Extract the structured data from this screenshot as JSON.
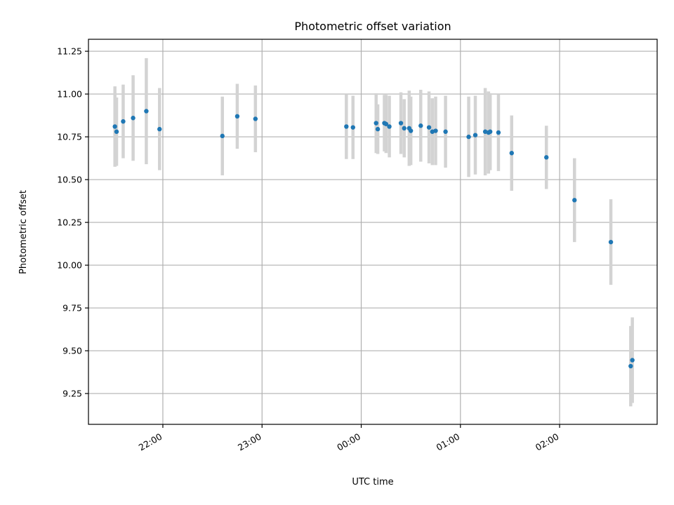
{
  "chart_data": {
    "type": "scatter",
    "title": "Photometric offset variation",
    "xlabel": "UTC time",
    "ylabel": "Photometric offset",
    "x_axis": "time",
    "xlim": [
      "21:15",
      "02:59"
    ],
    "ylim": [
      9.07,
      11.32
    ],
    "grid": true,
    "x_ticks": [
      "22:00",
      "23:00",
      "00:00",
      "01:00",
      "02:00"
    ],
    "y_ticks": [
      "9.25",
      "9.50",
      "9.75",
      "10.00",
      "10.25",
      "10.50",
      "10.75",
      "11.00",
      "11.25"
    ],
    "marker_color": "#1f77b4",
    "errorbar_color": "#d3d3d3",
    "series": [
      {
        "points": [
          {
            "t": "21:31",
            "y": 10.81,
            "err": 0.235
          },
          {
            "t": "21:32",
            "y": 10.78,
            "err": 0.2
          },
          {
            "t": "21:36",
            "y": 10.84,
            "err": 0.215
          },
          {
            "t": "21:42",
            "y": 10.86,
            "err": 0.25
          },
          {
            "t": "21:50",
            "y": 10.9,
            "err": 0.31
          },
          {
            "t": "21:58",
            "y": 10.795,
            "err": 0.24
          },
          {
            "t": "22:36",
            "y": 10.755,
            "err": 0.23
          },
          {
            "t": "22:45",
            "y": 10.87,
            "err": 0.19
          },
          {
            "t": "22:56",
            "y": 10.855,
            "err": 0.195
          },
          {
            "t": "23:51",
            "y": 10.81,
            "err": 0.19
          },
          {
            "t": "23:55",
            "y": 10.805,
            "err": 0.185
          },
          {
            "t": "00:09",
            "y": 10.83,
            "err": 0.175
          },
          {
            "t": "00:10",
            "y": 10.795,
            "err": 0.145
          },
          {
            "t": "00:14",
            "y": 10.83,
            "err": 0.165
          },
          {
            "t": "00:15",
            "y": 10.825,
            "err": 0.17
          },
          {
            "t": "00:17",
            "y": 10.81,
            "err": 0.18
          },
          {
            "t": "00:24",
            "y": 10.83,
            "err": 0.18
          },
          {
            "t": "00:26",
            "y": 10.8,
            "err": 0.17
          },
          {
            "t": "00:29",
            "y": 10.8,
            "err": 0.22
          },
          {
            "t": "00:30",
            "y": 10.785,
            "err": 0.2
          },
          {
            "t": "00:36",
            "y": 10.815,
            "err": 0.21
          },
          {
            "t": "00:41",
            "y": 10.805,
            "err": 0.21
          },
          {
            "t": "00:43",
            "y": 10.78,
            "err": 0.195
          },
          {
            "t": "00:45",
            "y": 10.785,
            "err": 0.2
          },
          {
            "t": "00:51",
            "y": 10.78,
            "err": 0.21
          },
          {
            "t": "01:05",
            "y": 10.75,
            "err": 0.235
          },
          {
            "t": "01:09",
            "y": 10.76,
            "err": 0.23
          },
          {
            "t": "01:15",
            "y": 10.78,
            "err": 0.255
          },
          {
            "t": "01:17",
            "y": 10.775,
            "err": 0.24
          },
          {
            "t": "01:18",
            "y": 10.78,
            "err": 0.225
          },
          {
            "t": "01:23",
            "y": 10.775,
            "err": 0.225
          },
          {
            "t": "01:31",
            "y": 10.655,
            "err": 0.22
          },
          {
            "t": "01:52",
            "y": 10.63,
            "err": 0.185
          },
          {
            "t": "02:09",
            "y": 10.38,
            "err": 0.245
          },
          {
            "t": "02:31",
            "y": 10.135,
            "err": 0.25
          },
          {
            "t": "02:43",
            "y": 9.41,
            "err": 0.235
          },
          {
            "t": "02:44",
            "y": 9.445,
            "err": 0.25
          }
        ]
      }
    ]
  }
}
